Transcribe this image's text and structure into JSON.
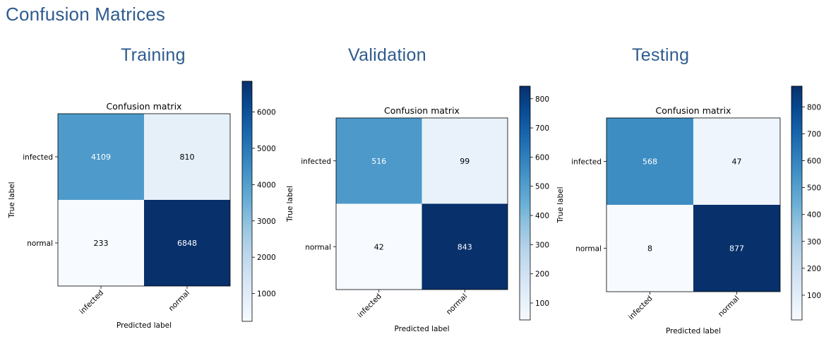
{
  "page": {
    "heading": "Confusion Matrices"
  },
  "panels": [
    {
      "title": "Training"
    },
    {
      "title": "Validation"
    },
    {
      "title": "Testing"
    }
  ],
  "colors": {
    "cmap_low": "#f7fbff",
    "cmap_mid": "#6aaed6",
    "cmap_high": "#08306b",
    "heading": "#2e5b8e",
    "text_dark": "#000000",
    "text_light": "#ffffff"
  },
  "chart_data": [
    {
      "type": "heatmap",
      "title": "Confusion matrix",
      "xlabel": "Predicted label",
      "ylabel": "True label",
      "x_categories": [
        "infected",
        "normal"
      ],
      "y_categories": [
        "infected",
        "normal"
      ],
      "values": [
        [
          4109,
          810
        ],
        [
          233,
          6848
        ]
      ],
      "colorbar": {
        "range": [
          233,
          6848
        ],
        "ticks": [
          1000,
          2000,
          3000,
          4000,
          5000,
          6000
        ]
      }
    },
    {
      "type": "heatmap",
      "title": "Confusion matrix",
      "xlabel": "Predicted label",
      "ylabel": "True label",
      "x_categories": [
        "infected",
        "normal"
      ],
      "y_categories": [
        "infected",
        "normal"
      ],
      "values": [
        [
          516,
          99
        ],
        [
          42,
          843
        ]
      ],
      "colorbar": {
        "range": [
          42,
          843
        ],
        "ticks": [
          100,
          200,
          300,
          400,
          500,
          600,
          700,
          800
        ]
      }
    },
    {
      "type": "heatmap",
      "title": "Confusion matrix",
      "xlabel": "Predicted label",
      "ylabel": "True label",
      "x_categories": [
        "infected",
        "normal"
      ],
      "y_categories": [
        "infected",
        "normal"
      ],
      "values": [
        [
          568,
          47
        ],
        [
          8,
          877
        ]
      ],
      "colorbar": {
        "range": [
          8,
          877
        ],
        "ticks": [
          100,
          200,
          300,
          400,
          500,
          600,
          700,
          800
        ]
      }
    }
  ]
}
